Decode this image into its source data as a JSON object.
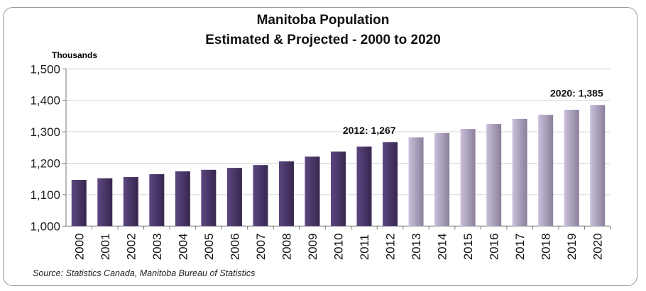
{
  "chart_data": {
    "type": "bar",
    "title": "Manitoba Population",
    "subtitle": "Estimated & Projected - 2000 to 2020",
    "ylabel": "Thousands",
    "xlabel": "",
    "ylim": [
      1000,
      1500
    ],
    "yticks": [
      "1,000",
      "1,100",
      "1,200",
      "1,300",
      "1,400",
      "1,500"
    ],
    "grid": true,
    "categories": [
      "2000",
      "2001",
      "2002",
      "2003",
      "2004",
      "2005",
      "2006",
      "2007",
      "2008",
      "2009",
      "2010",
      "2011",
      "2012",
      "2013",
      "2014",
      "2015",
      "2016",
      "2017",
      "2018",
      "2019",
      "2020"
    ],
    "values": [
      1147,
      1152,
      1156,
      1165,
      1174,
      1179,
      1185,
      1194,
      1206,
      1221,
      1237,
      1253,
      1267,
      1282,
      1296,
      1309,
      1325,
      1341,
      1354,
      1370,
      1385
    ],
    "series_colors": {
      "estimated": "#4e3a6e",
      "projected": "#c2b6d4"
    },
    "estimated_through": "2012",
    "annotations": [
      {
        "category": "2012",
        "text": "2012: 1,267"
      },
      {
        "category": "2020",
        "text": "2020: 1,385"
      }
    ],
    "source": "Source: Statistics Canada, Manitoba Bureau of Statistics"
  }
}
